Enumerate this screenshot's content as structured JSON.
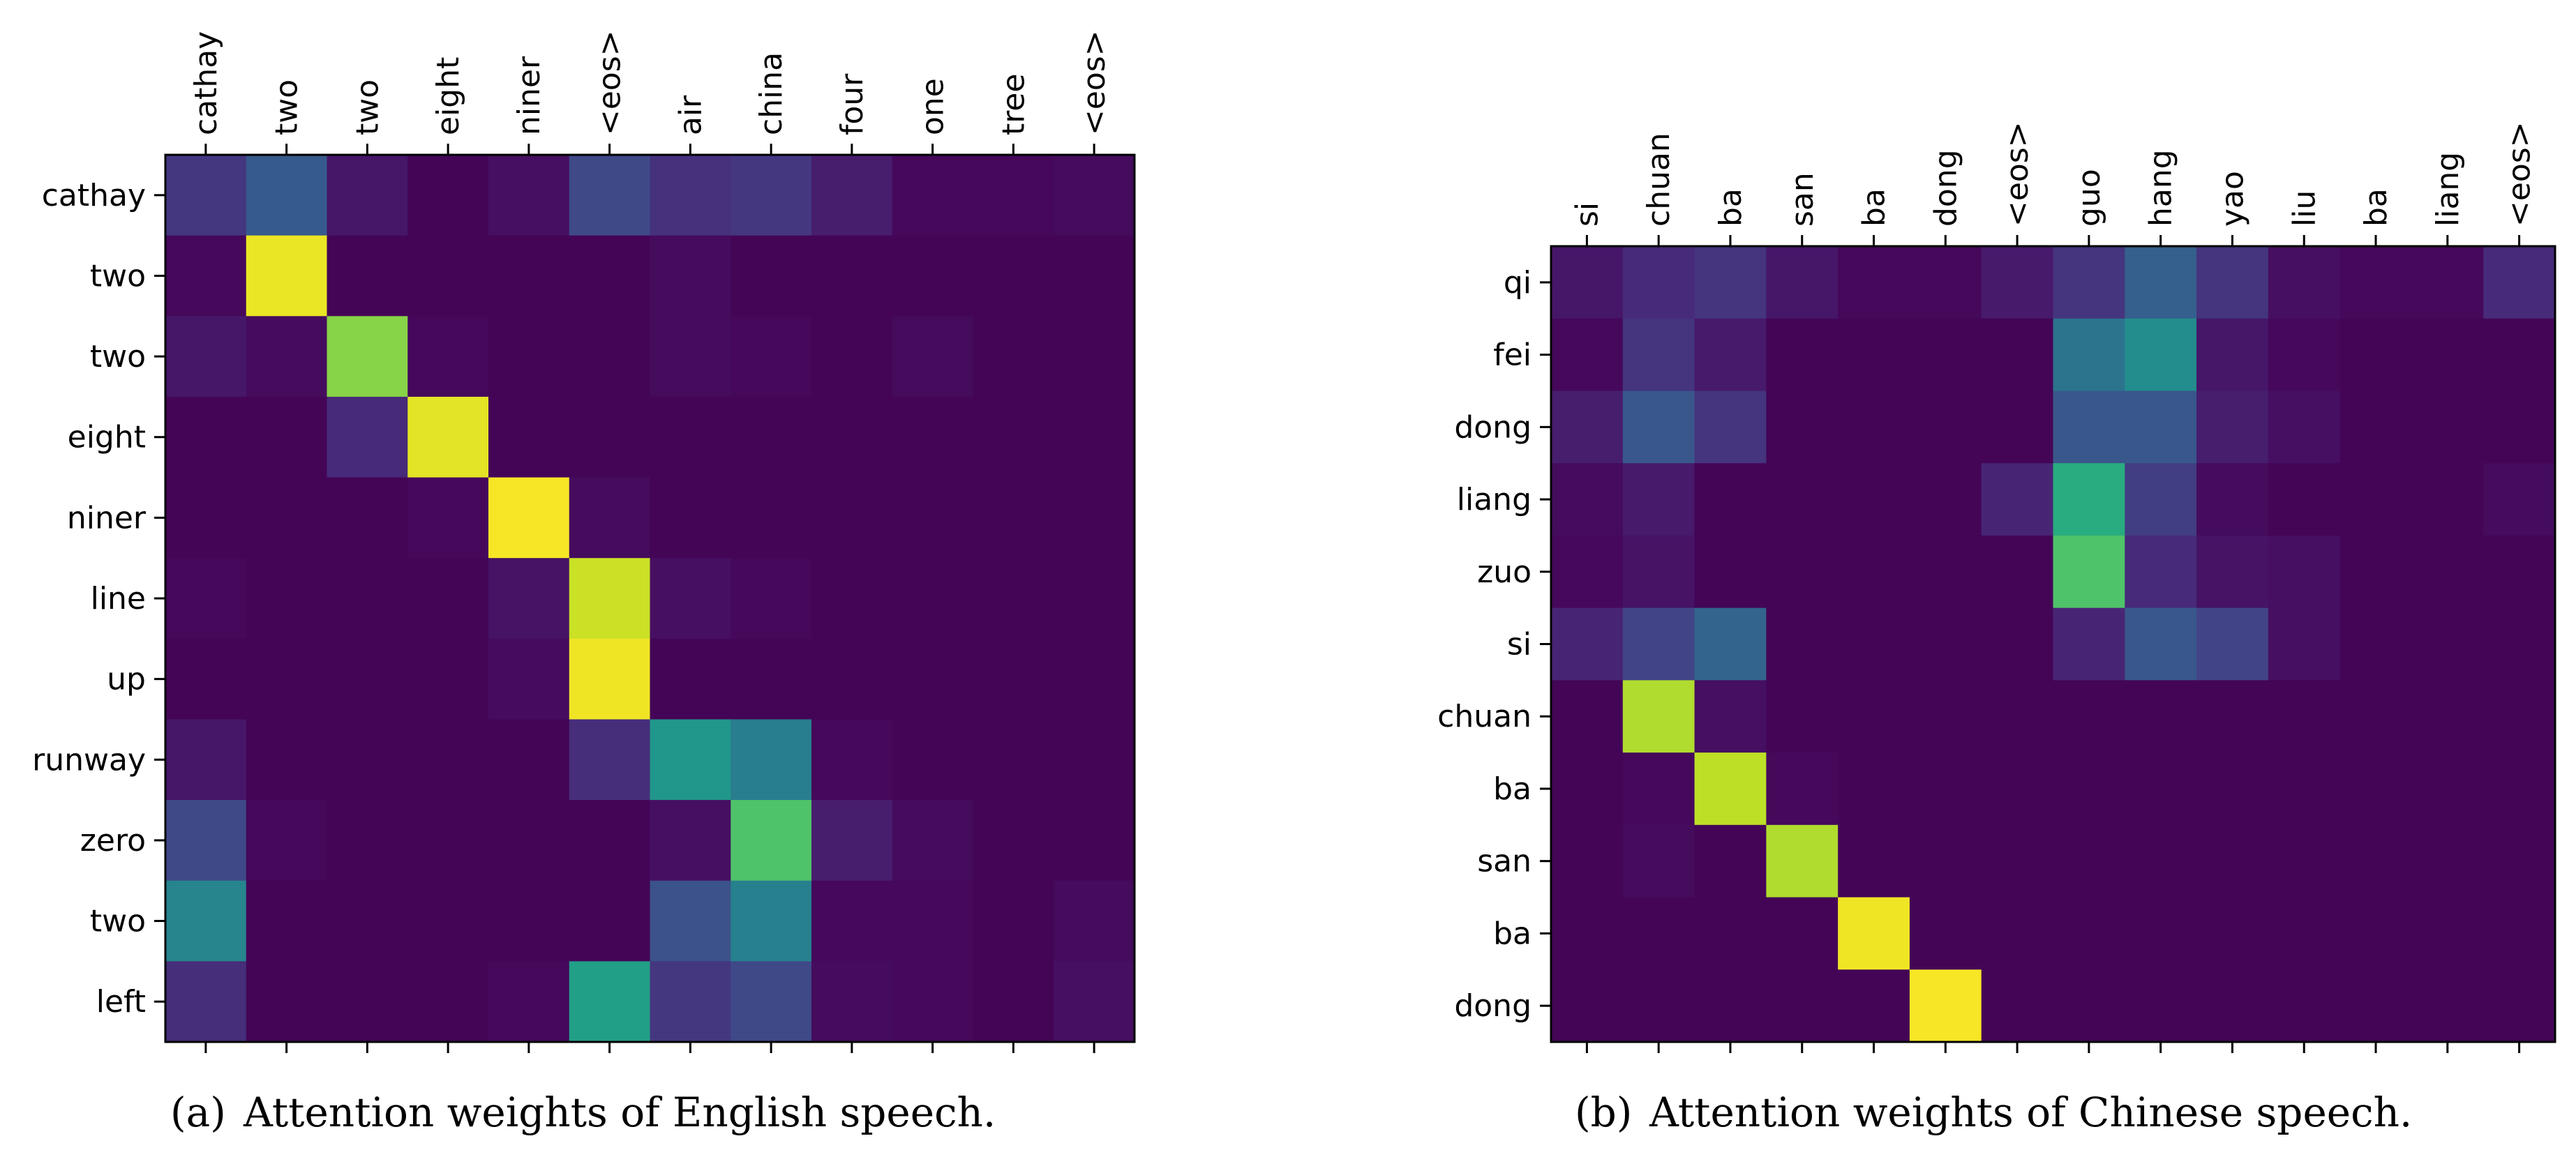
{
  "chart_data": [
    {
      "type": "heatmap",
      "caption_label": "(a)",
      "caption_text": "Attention weights of English speech.",
      "x_labels": [
        "cathay",
        "two",
        "two",
        "eight",
        "niner",
        "<eos>",
        "air",
        "china",
        "four",
        "one",
        "tree",
        "<eos>"
      ],
      "y_labels": [
        "cathay",
        "two",
        "two",
        "eight",
        "niner",
        "line",
        "up",
        "runway",
        "zero",
        "two",
        "left"
      ],
      "value_range": [
        0,
        1
      ],
      "colormap": "viridis",
      "values": [
        [
          0.16,
          0.28,
          0.06,
          0.01,
          0.04,
          0.22,
          0.14,
          0.16,
          0.08,
          0.02,
          0.02,
          0.03
        ],
        [
          0.02,
          0.97,
          0.01,
          0.01,
          0.01,
          0.01,
          0.03,
          0.01,
          0.01,
          0.01,
          0.01,
          0.01
        ],
        [
          0.06,
          0.03,
          0.82,
          0.02,
          0.01,
          0.01,
          0.03,
          0.02,
          0.01,
          0.03,
          0.01,
          0.01
        ],
        [
          0.01,
          0.01,
          0.12,
          0.96,
          0.01,
          0.01,
          0.01,
          0.01,
          0.01,
          0.01,
          0.01,
          0.01
        ],
        [
          0.01,
          0.01,
          0.01,
          0.02,
          0.99,
          0.03,
          0.01,
          0.01,
          0.01,
          0.01,
          0.01,
          0.01
        ],
        [
          0.02,
          0.01,
          0.01,
          0.01,
          0.05,
          0.92,
          0.04,
          0.02,
          0.01,
          0.01,
          0.01,
          0.01
        ],
        [
          0.01,
          0.01,
          0.01,
          0.01,
          0.03,
          0.98,
          0.01,
          0.01,
          0.01,
          0.01,
          0.01,
          0.01
        ],
        [
          0.06,
          0.01,
          0.01,
          0.01,
          0.01,
          0.13,
          0.52,
          0.42,
          0.02,
          0.01,
          0.01,
          0.01
        ],
        [
          0.22,
          0.02,
          0.01,
          0.01,
          0.01,
          0.01,
          0.04,
          0.72,
          0.08,
          0.03,
          0.01,
          0.01
        ],
        [
          0.45,
          0.01,
          0.01,
          0.01,
          0.01,
          0.01,
          0.25,
          0.43,
          0.02,
          0.02,
          0.01,
          0.03
        ],
        [
          0.13,
          0.01,
          0.01,
          0.01,
          0.02,
          0.56,
          0.16,
          0.22,
          0.03,
          0.02,
          0.01,
          0.04
        ]
      ]
    },
    {
      "type": "heatmap",
      "caption_label": "(b)",
      "caption_text": "Attention weights of Chinese speech.",
      "x_labels": [
        "si",
        "chuan",
        "ba",
        "san",
        "ba",
        "dong",
        "<eos>",
        "guo",
        "hang",
        "yao",
        "liu",
        "ba",
        "liang",
        "<eos>"
      ],
      "y_labels": [
        "qi",
        "fei",
        "dong",
        "liang",
        "zuo",
        "si",
        "chuan",
        "ba",
        "san",
        "ba",
        "dong"
      ],
      "value_range": [
        0,
        1
      ],
      "colormap": "viridis",
      "values": [
        [
          0.06,
          0.12,
          0.15,
          0.06,
          0.02,
          0.02,
          0.07,
          0.15,
          0.3,
          0.15,
          0.04,
          0.02,
          0.02,
          0.12
        ],
        [
          0.02,
          0.15,
          0.07,
          0.01,
          0.01,
          0.01,
          0.01,
          0.38,
          0.48,
          0.06,
          0.02,
          0.01,
          0.01,
          0.01
        ],
        [
          0.08,
          0.27,
          0.15,
          0.01,
          0.01,
          0.01,
          0.01,
          0.27,
          0.27,
          0.08,
          0.04,
          0.01,
          0.01,
          0.01
        ],
        [
          0.03,
          0.07,
          0.01,
          0.01,
          0.01,
          0.01,
          0.1,
          0.62,
          0.18,
          0.03,
          0.01,
          0.01,
          0.01,
          0.03
        ],
        [
          0.02,
          0.05,
          0.01,
          0.01,
          0.01,
          0.01,
          0.01,
          0.72,
          0.12,
          0.05,
          0.04,
          0.01,
          0.01,
          0.01
        ],
        [
          0.1,
          0.2,
          0.32,
          0.01,
          0.01,
          0.01,
          0.01,
          0.1,
          0.27,
          0.2,
          0.04,
          0.01,
          0.01,
          0.01
        ],
        [
          0.01,
          0.88,
          0.04,
          0.01,
          0.01,
          0.01,
          0.01,
          0.01,
          0.01,
          0.01,
          0.01,
          0.01,
          0.01,
          0.01
        ],
        [
          0.01,
          0.02,
          0.9,
          0.02,
          0.01,
          0.01,
          0.01,
          0.01,
          0.01,
          0.01,
          0.01,
          0.01,
          0.01,
          0.01
        ],
        [
          0.01,
          0.03,
          0.01,
          0.88,
          0.01,
          0.01,
          0.01,
          0.01,
          0.01,
          0.01,
          0.01,
          0.01,
          0.01,
          0.01
        ],
        [
          0.01,
          0.01,
          0.01,
          0.01,
          0.98,
          0.01,
          0.01,
          0.01,
          0.01,
          0.01,
          0.01,
          0.01,
          0.01,
          0.01
        ],
        [
          0.01,
          0.01,
          0.01,
          0.01,
          0.01,
          0.99,
          0.01,
          0.01,
          0.01,
          0.01,
          0.01,
          0.01,
          0.01,
          0.01
        ]
      ]
    }
  ]
}
